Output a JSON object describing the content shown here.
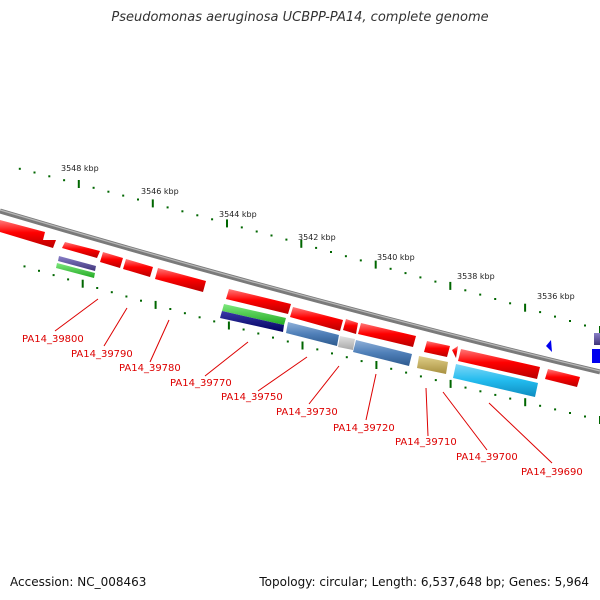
{
  "title": "Pseudomonas aeruginosa UCBPP-PA14, complete genome",
  "footer": {
    "accession": "Accession: NC_008463",
    "topology": "Topology: circular; Length: 6,537,648 bp; Genes: 5,964"
  },
  "scale_labels": [
    "3548 kbp",
    "3546 kbp",
    "3544 kbp",
    "3542 kbp",
    "3540 kbp",
    "3538 kbp",
    "3536 kbp"
  ],
  "gene_labels": [
    "PA14_39800",
    "PA14_39790",
    "PA14_39780",
    "PA14_39770",
    "PA14_39750",
    "PA14_39730",
    "PA14_39720",
    "PA14_39710",
    "PA14_39700",
    "PA14_39690"
  ],
  "colors": {
    "backbone": "#808080",
    "gene_red": "#ff0000",
    "label_red": "#dd0000",
    "tick_green": "#006600",
    "purple": "#5a4f9a",
    "green": "#33cc33",
    "navy": "#000080",
    "steelblue": "#4f7fb8",
    "lightgray": "#c0c0c0",
    "khaki": "#c8b055",
    "cyan": "#22bbee",
    "blue": "#0000ee"
  }
}
